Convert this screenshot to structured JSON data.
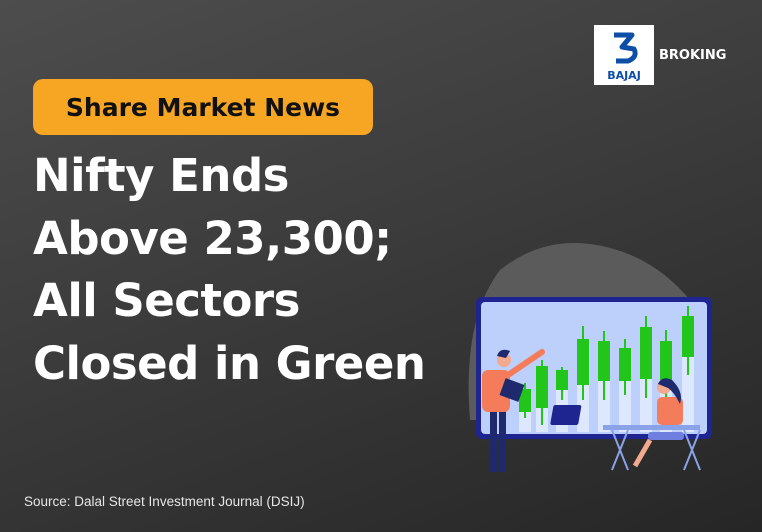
{
  "badge": {
    "label": "Share Market News",
    "color": "#f6a623"
  },
  "headline": {
    "lines": [
      "Nifty Ends",
      "Above 23,300;",
      "All Sectors",
      "Closed in Green"
    ]
  },
  "brand": {
    "logo_text": "BAJAJ",
    "division": "BROKING",
    "color": "#0d4ea6"
  },
  "source": "Source: Dalal Street Investment Journal (DSIJ)",
  "illustration": {
    "icon": "candlestick-chart-presentation-illustration",
    "candle_color": "#22c51a"
  }
}
